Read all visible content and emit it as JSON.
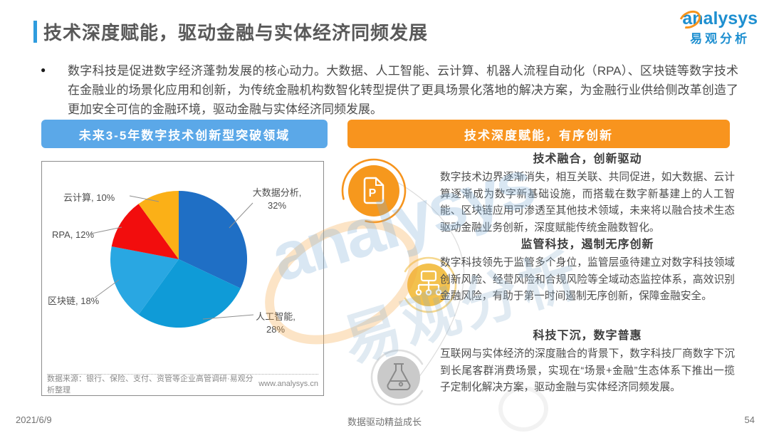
{
  "page": {
    "title": "技术深度赋能，驱动金融与实体经济同频发展",
    "bullet_glyph": "●",
    "intro": "数字科技是促进数字经济蓬勃发展的核心动力。大数据、人工智能、云计算、机器人流程自动化（RPA）、区块链等数字技术在金融业的场景化应用和创新，为传统金融机构数智化转型提供了更具场景化落地的解决方案，为金融行业供给侧改革创造了更加安全可信的金融环境，驱动金融与实体经济同频发展。",
    "logo": {
      "brand": "analysys",
      "brand_cn": "易观分析"
    },
    "footer": {
      "date": "2021/6/9",
      "slogan": "数据驱动精益成长",
      "page_number": "54"
    }
  },
  "watermark": {
    "brand": "analysys",
    "brand_cn": "易观分析"
  },
  "left_panel": {
    "header": "未来3-5年数字技术创新型突破领域",
    "source_note": "数据来源：银行、保险、支付、资管等企业高管调研·易观分析整理",
    "source_url": "www.analysys.cn"
  },
  "chart_data": {
    "type": "pie",
    "title": "未来3-5年数字技术创新型突破领域",
    "categories": [
      "大数据分析",
      "人工智能",
      "区块链",
      "RPA",
      "云计算"
    ],
    "values": [
      32,
      28,
      18,
      12,
      10
    ],
    "unit": "%",
    "colors": [
      "#1f6fc5",
      "#0f9bd7",
      "#29a7e2",
      "#f20d0d",
      "#fbb017"
    ],
    "callouts": [
      "大数据分析,\n32%",
      "人工智能,\n28%",
      "区块链, 18%",
      "RPA, 12%",
      "云计算, 10%"
    ],
    "start_angle_deg": 0,
    "direction": "clockwise",
    "legend_position": "callout-labels"
  },
  "right_panel": {
    "header": "技术深度赋能，有序创新",
    "items": [
      {
        "icon": "document-p-icon",
        "title": "技术融合，创新驱动",
        "body": "数字技术边界逐渐消失，相互关联、共同促进，如大数据、云计算逐渐成为数字新基础设施，而搭载在数字新基建上的人工智能、区块链应用可渗透至其他技术领域，未来将以融合技术生态驱动金融业务创新，深度赋能传统金融数智化。"
      },
      {
        "icon": "sitemap-icon",
        "title": "监管科技，遏制无序创新",
        "body": "数字科技领先于监管多个身位，监管层亟待建立对数字科技领域创新风险、经营风险和合规风险等全域动态监控体系，高效识别金融风险，有助于第一时间遏制无序创新，保障金融安全。"
      },
      {
        "icon": "flask-icon",
        "title": "科技下沉，数字普惠",
        "body": "互联网与实体经济的深度融合的背景下，数字科技厂商数字下沉到长尾客群消费场景，实现在“场景+金融”生态体系下推出一揽子定制化解决方案，驱动金融与实体经济同频发展。"
      }
    ]
  }
}
